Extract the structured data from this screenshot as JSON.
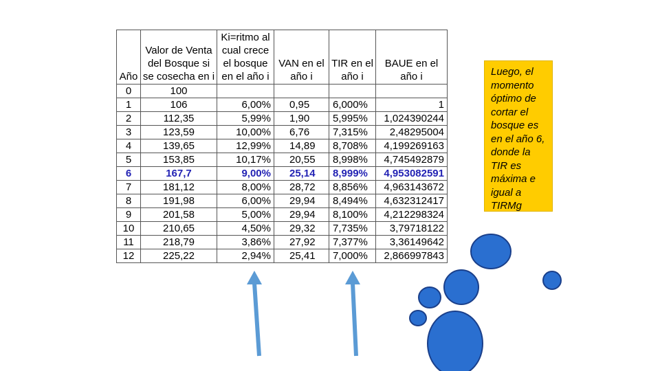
{
  "table": {
    "headers": [
      "Año",
      "Valor de Venta del Bosque si se cosecha en i",
      "Ki=ritmo al cual crece el bosque en el año i",
      "VAN en el año i",
      "TIR en el año i",
      "BAUE en el año i"
    ],
    "rows": [
      {
        "year": "0",
        "value": "100",
        "ki": "",
        "van": "",
        "tir": "",
        "baue": ""
      },
      {
        "year": "1",
        "value": "106",
        "ki": "6,00%",
        "van": "0,95",
        "tir": "6,000%",
        "baue": "1"
      },
      {
        "year": "2",
        "value": "112,35",
        "ki": "5,99%",
        "van": "1,90",
        "tir": "5,995%",
        "baue": "1,024390244"
      },
      {
        "year": "3",
        "value": "123,59",
        "ki": "10,00%",
        "van": "6,76",
        "tir": "7,315%",
        "baue": "2,48295004"
      },
      {
        "year": "4",
        "value": "139,65",
        "ki": "12,99%",
        "van": "14,89",
        "tir": "8,708%",
        "baue": "4,199269163"
      },
      {
        "year": "5",
        "value": "153,85",
        "ki": "10,17%",
        "van": "20,55",
        "tir": "8,998%",
        "baue": "4,745492879"
      },
      {
        "year": "6",
        "value": "167,7",
        "ki": "9,00%",
        "van": "25,14",
        "tir": "8,999%",
        "baue": "4,953082591"
      },
      {
        "year": "7",
        "value": "181,12",
        "ki": "8,00%",
        "van": "28,72",
        "tir": "8,856%",
        "baue": "4,963143672"
      },
      {
        "year": "8",
        "value": "191,98",
        "ki": "6,00%",
        "van": "29,94",
        "tir": "8,494%",
        "baue": "4,632312417"
      },
      {
        "year": "9",
        "value": "201,58",
        "ki": "5,00%",
        "van": "29,94",
        "tir": "8,100%",
        "baue": "4,212298324"
      },
      {
        "year": "10",
        "value": "210,65",
        "ki": "4,50%",
        "van": "29,32",
        "tir": "7,735%",
        "baue": "3,79718122"
      },
      {
        "year": "11",
        "value": "218,79",
        "ki": "3,86%",
        "van": "27,92",
        "tir": "7,377%",
        "baue": "3,36149642"
      },
      {
        "year": "12",
        "value": "225,22",
        "ki": "2,94%",
        "van": "25,41",
        "tir": "7,000%",
        "baue": "2,866997843"
      }
    ],
    "highlight_year": "6",
    "highlight_color": "#2323b4"
  },
  "note": {
    "text": "Luego, el momento óptimo de cortar el bosque es en el año 6, donde la TIR es máxima e igual a TIRMg",
    "background": "#ffcc00"
  },
  "decorations": {
    "arrow_color": "#5b9bd5",
    "paw_color": "#2a6fd0",
    "paw_outline": "#1a3f8a",
    "arrows": [
      "up-arrow-icon",
      "up-arrow-icon"
    ],
    "paw": "paw-print-icon"
  }
}
